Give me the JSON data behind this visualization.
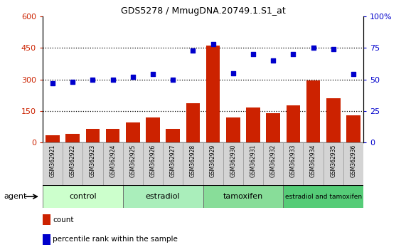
{
  "title": "GDS5278 / MmugDNA.20749.1.S1_at",
  "samples": [
    "GSM362921",
    "GSM362922",
    "GSM362923",
    "GSM362924",
    "GSM362925",
    "GSM362926",
    "GSM362927",
    "GSM362928",
    "GSM362929",
    "GSM362930",
    "GSM362931",
    "GSM362932",
    "GSM362933",
    "GSM362934",
    "GSM362935",
    "GSM362936"
  ],
  "counts": [
    35,
    40,
    65,
    65,
    95,
    120,
    65,
    185,
    460,
    120,
    165,
    140,
    175,
    295,
    210,
    130
  ],
  "percentile": [
    47,
    48,
    50,
    50,
    52,
    54,
    50,
    73,
    78,
    55,
    70,
    65,
    70,
    75,
    74,
    54
  ],
  "groups": [
    {
      "label": "control",
      "start": 0,
      "end": 3,
      "color": "#ccffcc"
    },
    {
      "label": "estradiol",
      "start": 4,
      "end": 7,
      "color": "#aaeebb"
    },
    {
      "label": "tamoxifen",
      "start": 8,
      "end": 11,
      "color": "#88dd99"
    },
    {
      "label": "estradiol and tamoxifen",
      "start": 12,
      "end": 15,
      "color": "#55cc77"
    }
  ],
  "bar_color": "#cc2200",
  "dot_color": "#0000cc",
  "left_ylim": [
    0,
    600
  ],
  "right_ylim": [
    0,
    100
  ],
  "left_yticks": [
    0,
    150,
    300,
    450,
    600
  ],
  "right_yticks": [
    0,
    25,
    50,
    75,
    100
  ],
  "dotted_lines": [
    150,
    300,
    450
  ]
}
